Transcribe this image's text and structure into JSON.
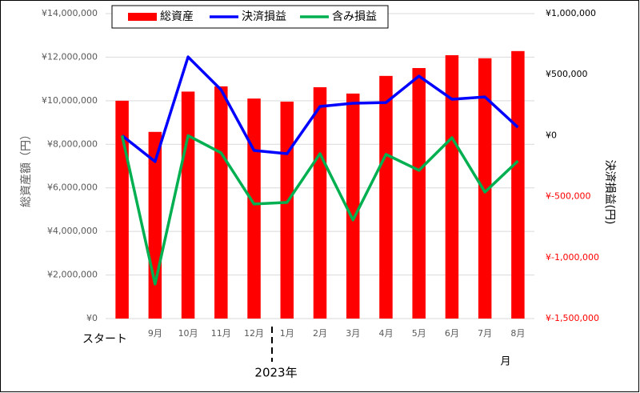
{
  "chart_data": {
    "type": "bar",
    "categories": [
      "スタート",
      "9月",
      "10月",
      "11月",
      "12月",
      "1月",
      "2月",
      "3月",
      "4月",
      "5月",
      "6月",
      "7月",
      "8月"
    ],
    "series": [
      {
        "name": "総資産",
        "type": "bar",
        "color": "#ff0000",
        "values": [
          10000000,
          8570000,
          10420000,
          10660000,
          10100000,
          9960000,
          10620000,
          10330000,
          11140000,
          11500000,
          12090000,
          11950000,
          12280000
        ]
      },
      {
        "name": "決済損益",
        "type": "line",
        "axis": "y2",
        "color": "#0000ff",
        "values": [
          0,
          -213000,
          645000,
          376000,
          -122000,
          -148000,
          239000,
          265000,
          271000,
          488000,
          298000,
          317000,
          68000
        ]
      },
      {
        "name": "含み損益",
        "type": "line",
        "axis": "y2",
        "color": "#00b050",
        "values": [
          0,
          -1217000,
          0,
          -141000,
          -561000,
          -548000,
          -148000,
          -692000,
          -154000,
          -285000,
          -17000,
          -463000,
          -208000
        ]
      }
    ],
    "ylabel": "総資産額（円）",
    "y2label": "決済損益(円)",
    "ylim": [
      0,
      14000000
    ],
    "yticks": [
      {
        "value": 0,
        "label": "¥0"
      },
      {
        "value": 2000000,
        "label": "¥2,000,000"
      },
      {
        "value": 4000000,
        "label": "¥4,000,000"
      },
      {
        "value": 6000000,
        "label": "¥6,000,000"
      },
      {
        "value": 8000000,
        "label": "¥8,000,000"
      },
      {
        "value": 10000000,
        "label": "¥10,000,000"
      },
      {
        "value": 12000000,
        "label": "¥12,000,000"
      },
      {
        "value": 14000000,
        "label": "¥14,000,000"
      }
    ],
    "y2lim": [
      -1500000,
      1000000
    ],
    "y2ticks": [
      {
        "value": -1500000,
        "label": "¥-1,500,000"
      },
      {
        "value": -1000000,
        "label": "¥-1,000,000"
      },
      {
        "value": -500000,
        "label": "¥-500,000"
      },
      {
        "value": 0,
        "label": "¥0"
      },
      {
        "value": 500000,
        "label": "¥500,000"
      },
      {
        "value": 1000000,
        "label": "¥1,000,000"
      }
    ],
    "y2_negative_color": "#ff0000",
    "annotations": [
      "2023年",
      "月"
    ],
    "grid": true,
    "legend": "top"
  }
}
